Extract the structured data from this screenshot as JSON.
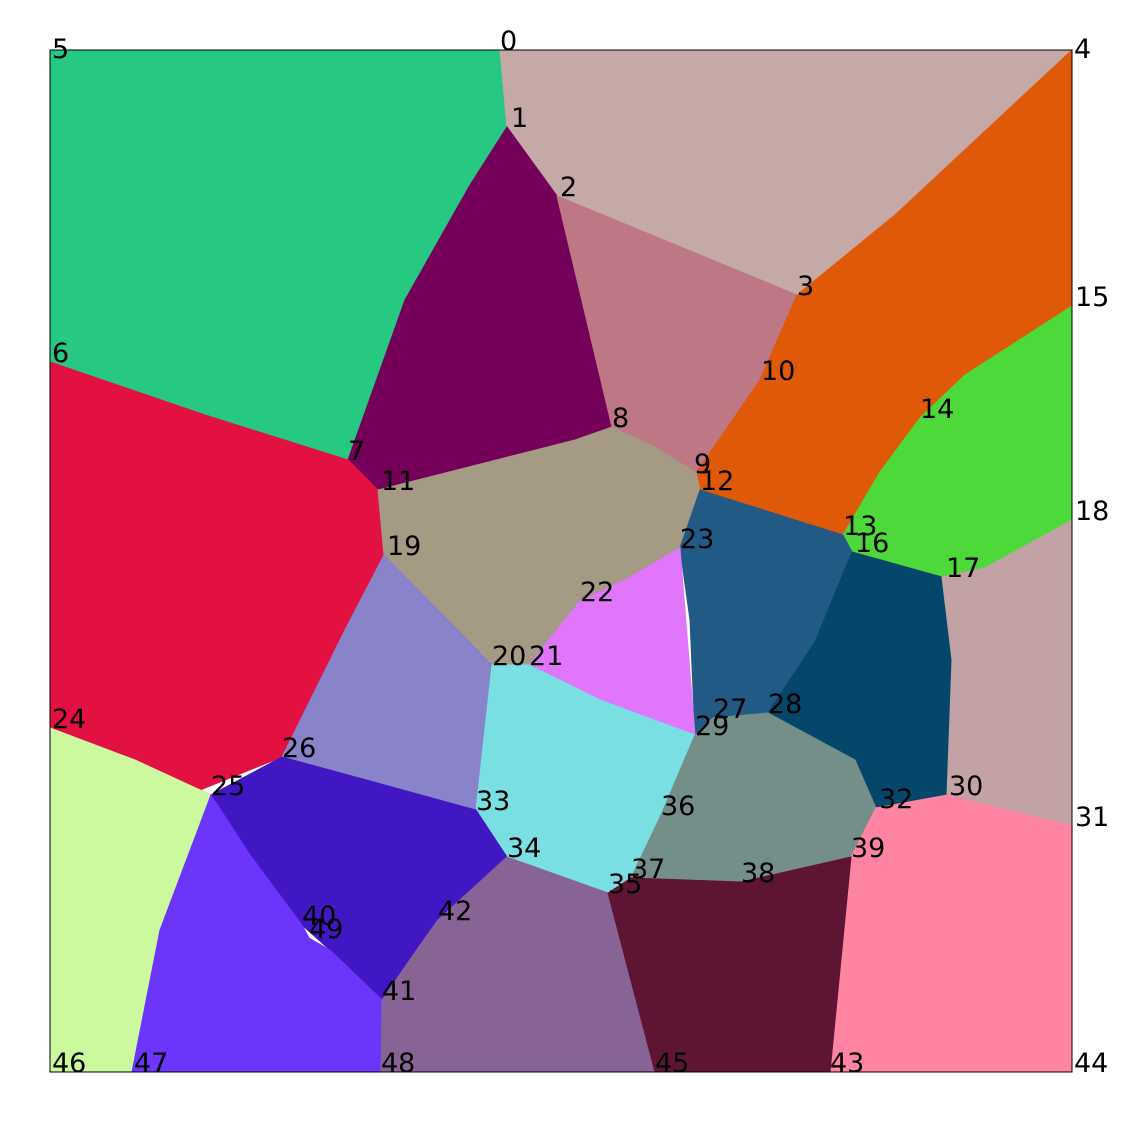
{
  "regions": [
    {
      "name": "region-top-left",
      "color": "#26C882"
    },
    {
      "name": "region-top-center",
      "color": "#C5A9A6"
    },
    {
      "name": "region-purple-wedge",
      "color": "#750059"
    },
    {
      "name": "region-mauve",
      "color": "#BD7785"
    },
    {
      "name": "region-orange",
      "color": "#E05908"
    },
    {
      "name": "region-green",
      "color": "#4ED93B"
    },
    {
      "name": "region-red",
      "color": "#E31042"
    },
    {
      "name": "region-taupe",
      "color": "#A59A83"
    },
    {
      "name": "region-steel-blue",
      "color": "#225A86"
    },
    {
      "name": "region-dark-teal",
      "color": "#05476A"
    },
    {
      "name": "region-right-pink-gray",
      "color": "#C2A2A4"
    },
    {
      "name": "region-magenta",
      "color": "#DF76FC"
    },
    {
      "name": "region-periwinkle",
      "color": "#8984C9"
    },
    {
      "name": "region-cyan",
      "color": "#7ADFE2"
    },
    {
      "name": "region-gray-green",
      "color": "#748F89"
    },
    {
      "name": "region-pink",
      "color": "#FF84A1"
    },
    {
      "name": "region-light-green",
      "color": "#CCF89E"
    },
    {
      "name": "region-indigo",
      "color": "#4117C3"
    },
    {
      "name": "region-violet",
      "color": "#6B35FB"
    },
    {
      "name": "region-muted-purple",
      "color": "#886496"
    },
    {
      "name": "region-maroon",
      "color": "#5E1433"
    }
  ],
  "vertices": [
    {
      "id": "0",
      "label": "0"
    },
    {
      "id": "1",
      "label": "1"
    },
    {
      "id": "2",
      "label": "2"
    },
    {
      "id": "3",
      "label": "3"
    },
    {
      "id": "4",
      "label": "4"
    },
    {
      "id": "5",
      "label": "5"
    },
    {
      "id": "6",
      "label": "6"
    },
    {
      "id": "7",
      "label": "7"
    },
    {
      "id": "8",
      "label": "8"
    },
    {
      "id": "9",
      "label": "9"
    },
    {
      "id": "10",
      "label": "10"
    },
    {
      "id": "11",
      "label": "11"
    },
    {
      "id": "12",
      "label": "12"
    },
    {
      "id": "13",
      "label": "13"
    },
    {
      "id": "14",
      "label": "14"
    },
    {
      "id": "15",
      "label": "15"
    },
    {
      "id": "16",
      "label": "16"
    },
    {
      "id": "17",
      "label": "17"
    },
    {
      "id": "18",
      "label": "18"
    },
    {
      "id": "19",
      "label": "19"
    },
    {
      "id": "20",
      "label": "20"
    },
    {
      "id": "21",
      "label": "21"
    },
    {
      "id": "22",
      "label": "22"
    },
    {
      "id": "23",
      "label": "23"
    },
    {
      "id": "24",
      "label": "24"
    },
    {
      "id": "25",
      "label": "25"
    },
    {
      "id": "26",
      "label": "26"
    },
    {
      "id": "27",
      "label": "27"
    },
    {
      "id": "28",
      "label": "28"
    },
    {
      "id": "29",
      "label": "29"
    },
    {
      "id": "30",
      "label": "30"
    },
    {
      "id": "31",
      "label": "31"
    },
    {
      "id": "32",
      "label": "32"
    },
    {
      "id": "33",
      "label": "33"
    },
    {
      "id": "34",
      "label": "34"
    },
    {
      "id": "35",
      "label": "35"
    },
    {
      "id": "36",
      "label": "36"
    },
    {
      "id": "37",
      "label": "37"
    },
    {
      "id": "38",
      "label": "38"
    },
    {
      "id": "39",
      "label": "39"
    },
    {
      "id": "40",
      "label": "40"
    },
    {
      "id": "41",
      "label": "41"
    },
    {
      "id": "42",
      "label": "42"
    },
    {
      "id": "43",
      "label": "43"
    },
    {
      "id": "44",
      "label": "44"
    },
    {
      "id": "45",
      "label": "45"
    },
    {
      "id": "46",
      "label": "46"
    },
    {
      "id": "47",
      "label": "47"
    },
    {
      "id": "48",
      "label": "48"
    },
    {
      "id": "49",
      "label": "49"
    }
  ]
}
